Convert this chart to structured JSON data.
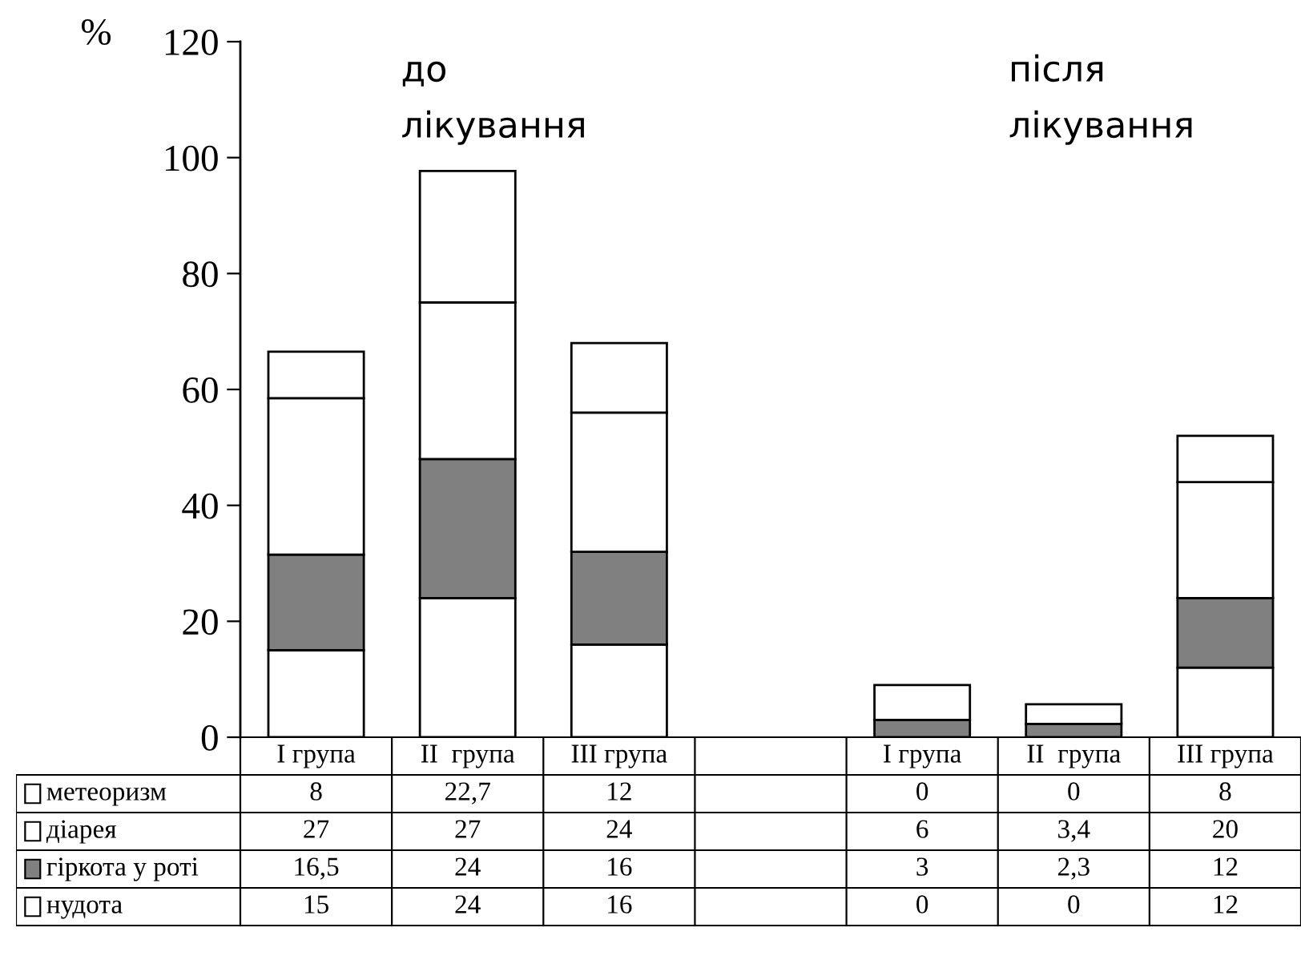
{
  "chart_data": {
    "type": "bar",
    "stacked": true,
    "ylabel": "%",
    "categories": [
      "I група",
      "II  група",
      "III група",
      null,
      "I група",
      "II  група",
      "III група"
    ],
    "series": [
      {
        "name": "нудота",
        "color": "#ffffff",
        "values": [
          15,
          24,
          16,
          null,
          0,
          0,
          12
        ],
        "value_labels": [
          "15",
          "24",
          "16",
          null,
          "0",
          "0",
          "12"
        ]
      },
      {
        "name": "гіркота у роті",
        "color": "#808080",
        "values": [
          16.5,
          24,
          16,
          null,
          3,
          2.3,
          12
        ],
        "value_labels": [
          "16,5",
          "24",
          "16",
          null,
          "3",
          "2,3",
          "12"
        ]
      },
      {
        "name": "діарея",
        "color": "#ffffff",
        "values": [
          27,
          27,
          24,
          null,
          6,
          3.4,
          20
        ],
        "value_labels": [
          "27",
          "27",
          "24",
          null,
          "6",
          "3,4",
          "20"
        ]
      },
      {
        "name": "метеоризм",
        "color": "#ffffff",
        "values": [
          8,
          22.7,
          12,
          null,
          0,
          0,
          8
        ],
        "value_labels": [
          "8",
          "22,7",
          "12",
          null,
          "0",
          "0",
          "8"
        ]
      }
    ],
    "ylim": [
      0,
      120
    ],
    "yticks": [
      0,
      20,
      40,
      60,
      80,
      100,
      120
    ],
    "grid": false,
    "legend": "bottom left",
    "annotations": [
      "до\nлікування",
      "після\nлікування"
    ]
  }
}
